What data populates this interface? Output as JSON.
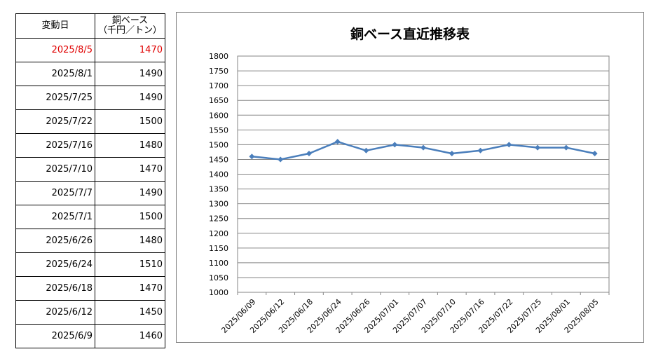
{
  "table": {
    "header": {
      "date": "変動日",
      "price_line1": "銅ベース",
      "price_line2": "（千円／トン）"
    },
    "rows": [
      {
        "date": "2025/8/5",
        "price": "1470"
      },
      {
        "date": "2025/8/1",
        "price": "1490"
      },
      {
        "date": "2025/7/25",
        "price": "1490"
      },
      {
        "date": "2025/7/22",
        "price": "1500"
      },
      {
        "date": "2025/7/16",
        "price": "1480"
      },
      {
        "date": "2025/7/10",
        "price": "1470"
      },
      {
        "date": "2025/7/7",
        "price": "1490"
      },
      {
        "date": "2025/7/1",
        "price": "1500"
      },
      {
        "date": "2025/6/26",
        "price": "1480"
      },
      {
        "date": "2025/6/24",
        "price": "1510"
      },
      {
        "date": "2025/6/18",
        "price": "1470"
      },
      {
        "date": "2025/6/12",
        "price": "1450"
      },
      {
        "date": "2025/6/9",
        "price": "1460"
      }
    ],
    "latest_color": "#e00000"
  },
  "chart_data": {
    "type": "line",
    "title": "銅ベース直近推移表",
    "categories": [
      "2025/06/09",
      "2025/06/12",
      "2025/06/18",
      "2025/06/24",
      "2025/06/26",
      "2025/07/01",
      "2025/07/07",
      "2025/07/10",
      "2025/07/16",
      "2025/07/22",
      "2025/07/25",
      "2025/08/01",
      "2025/08/05"
    ],
    "series": [
      {
        "values": [
          1460,
          1450,
          1470,
          1510,
          1480,
          1500,
          1490,
          1470,
          1480,
          1500,
          1490,
          1490,
          1470
        ],
        "color": "#4a7ebb",
        "marker": "diamond"
      }
    ],
    "ylim": [
      1000,
      1800
    ],
    "ytick_step": 50,
    "grid": true,
    "legend": "none"
  }
}
